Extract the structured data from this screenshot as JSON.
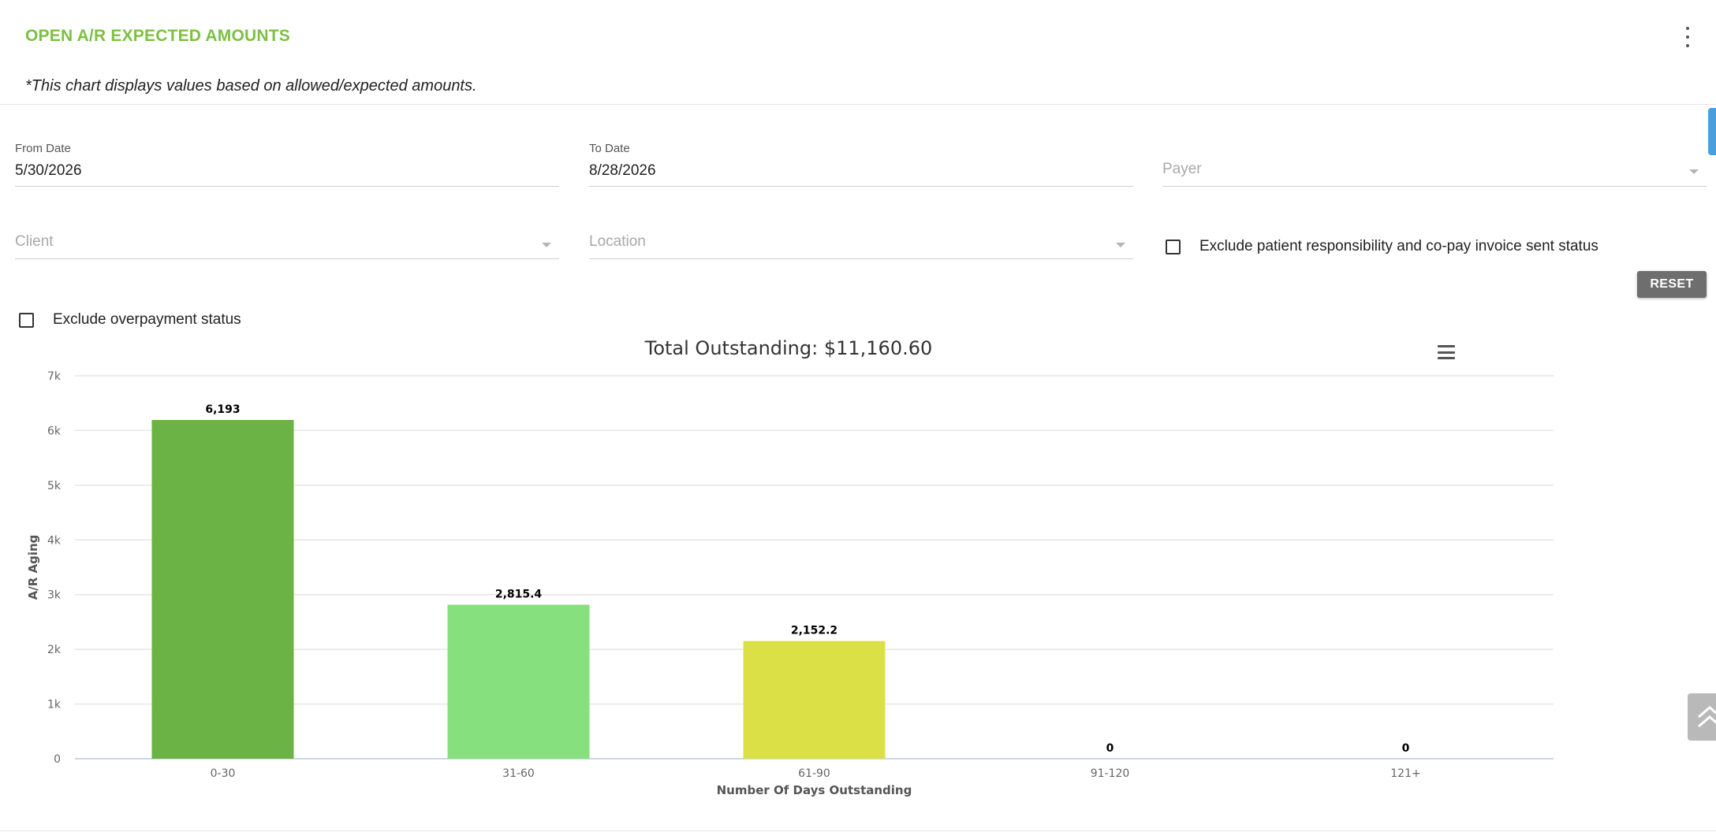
{
  "header": {
    "title": "OPEN A/R EXPECTED AMOUNTS",
    "note": "*This chart displays values based on allowed/expected amounts."
  },
  "filters": {
    "from_date": {
      "label": "From Date",
      "value": "5/30/2026"
    },
    "to_date": {
      "label": "To Date",
      "value": "8/28/2026"
    },
    "payer": {
      "placeholder": "Payer"
    },
    "client": {
      "placeholder": "Client"
    },
    "location": {
      "placeholder": "Location"
    },
    "exclude_patient_responsibility": {
      "label": "Exclude patient responsibility and co-pay invoice sent status",
      "checked": false
    },
    "exclude_overpayment": {
      "label": "Exclude overpayment status",
      "checked": false
    },
    "reset_label": "RESET"
  },
  "icons": {
    "menu": "kebab-menu-icon",
    "chart_menu": "hamburger-menu-icon",
    "back_to_top": "double-chevron-up-icon"
  },
  "chart_data": {
    "type": "bar",
    "title": "Total Outstanding: $11,160.60",
    "xlabel": "Number Of Days Outstanding",
    "ylabel": "A/R Aging",
    "categories": [
      "0-30",
      "31-60",
      "61-90",
      "91-120",
      "121+"
    ],
    "values": [
      6193,
      2815.4,
      2152.2,
      0,
      0
    ],
    "data_labels": [
      "6,193",
      "2,815.4",
      "2,152.2",
      "0",
      "0"
    ],
    "colors": [
      "#6ab344",
      "#86e07d",
      "#dce047",
      "#cccccc",
      "#cccccc"
    ],
    "ylim": [
      0,
      7000
    ],
    "yticks": [
      0,
      1000,
      2000,
      3000,
      4000,
      5000,
      6000,
      7000
    ],
    "ytick_labels": [
      "0",
      "1k",
      "2k",
      "3k",
      "4k",
      "5k",
      "6k",
      "7k"
    ],
    "grid": true,
    "legend": "none"
  }
}
